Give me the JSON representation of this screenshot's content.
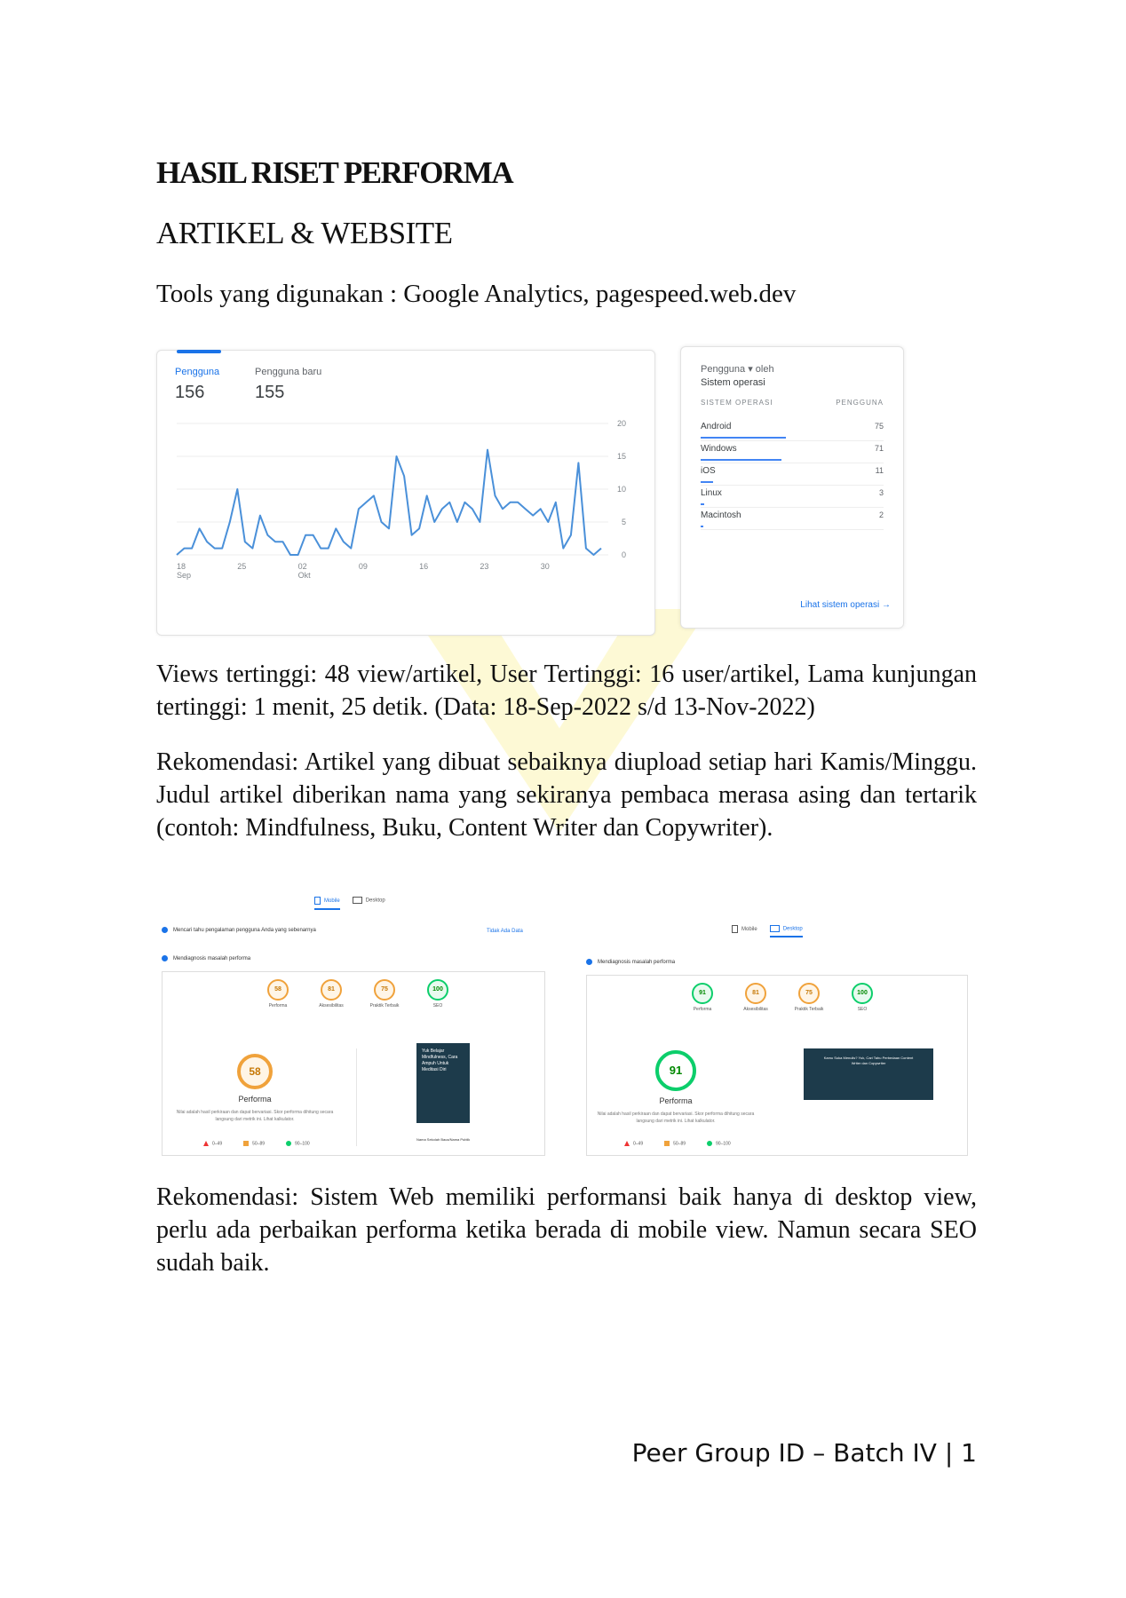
{
  "document": {
    "title": "HASIL RISET PERFORMA",
    "subtitle": "ARTIKEL & WEBSITE",
    "tools_line": "Tools yang digunakan : Google Analytics, pagespeed.web.dev",
    "paragraph1": "Views tertinggi: 48 view/artikel, User Tertinggi: 16 user/artikel, Lama kunjungan tertinggi: 1 menit,  25 detik. (Data: 18-Sep-2022 s/d 13-Nov-2022)",
    "paragraph2": "Rekomendasi: Artikel yang dibuat sebaiknya diupload setiap hari Kamis/Minggu. Judul artikel diberikan nama yang sekiranya pembaca merasa asing dan tertarik (contoh: Mindfulness, Buku, Content Writer dan Copywriter).",
    "paragraph3": "Rekomendasi: Sistem Web memiliki performansi baik hanya di desktop view, perlu ada perbaikan performa ketika berada di mobile view. Namun secara SEO sudah baik.",
    "footer": "Peer Group ID – Batch IV | 1"
  },
  "analytics": {
    "metric1_label": "Pengguna",
    "metric1_value": "156",
    "metric2_label": "Pengguna baru",
    "metric2_value": "155",
    "accent": "#1a73e8"
  },
  "chart_data": {
    "type": "line",
    "x": [
      0,
      1,
      2,
      3,
      4,
      5,
      6,
      7,
      8,
      9,
      10,
      11,
      12,
      13,
      14,
      15,
      16,
      17,
      18,
      19,
      20,
      21,
      22,
      23,
      24,
      25,
      26,
      27,
      28,
      29,
      30,
      31,
      32,
      33,
      34,
      35,
      36,
      37,
      38,
      39,
      40,
      41,
      42,
      43,
      44,
      45,
      46,
      47,
      48,
      49,
      50,
      51,
      52,
      53,
      54,
      55,
      56
    ],
    "values": [
      0,
      1,
      1,
      4,
      2,
      1,
      1,
      5,
      10,
      2,
      1,
      6,
      3,
      2,
      2,
      0,
      0,
      3,
      3,
      1,
      1,
      4,
      2,
      1,
      7,
      8,
      9,
      5,
      4,
      15,
      12,
      3,
      4,
      9,
      5,
      7,
      8,
      5,
      8,
      7,
      5,
      16,
      9,
      7,
      8,
      8,
      7,
      6,
      7,
      5,
      8,
      1,
      3,
      14,
      1,
      0,
      1
    ],
    "x_tick_labels": [
      "18\nSep",
      "25",
      "02\nOkt",
      "09",
      "16",
      "23",
      "30"
    ],
    "x_tick_positions": [
      0,
      8,
      16,
      24,
      32,
      40,
      48
    ],
    "y_ticks": [
      0,
      5,
      10,
      15,
      20
    ],
    "ylim": [
      0,
      20
    ],
    "color": "#4a90d9",
    "grid": true
  },
  "os_table": {
    "title": "Pengguna ▾ oleh",
    "subtitle": "Sistem operasi",
    "col1": "SISTEM OPERASI",
    "col2": "PENGGUNA",
    "rows": [
      {
        "name": "Android",
        "value": "75"
      },
      {
        "name": "Windows",
        "value": "71"
      },
      {
        "name": "iOS",
        "value": "11"
      },
      {
        "name": "Linux",
        "value": "3"
      },
      {
        "name": "Macintosh",
        "value": "2"
      }
    ],
    "link": "Lihat sistem operasi →"
  },
  "pagespeed_mobile": {
    "tab_mobile": "Mobile",
    "tab_desktop": "Desktop",
    "real_users_line": "Mencari tahu pengalaman pengguna Anda yang sebenarnya",
    "no_data": "Tidak Ada Data",
    "diagnose_line": "Mendiagnosis masalah performa",
    "scores": [
      {
        "value": "58",
        "label": "Performa",
        "color": "orange"
      },
      {
        "value": "81",
        "label": "Aksesibilitas",
        "color": "orange"
      },
      {
        "value": "75",
        "label": "Praktik Terbaik",
        "color": "orange"
      },
      {
        "value": "100",
        "label": "SEO",
        "color": "green"
      }
    ],
    "big_score": "58",
    "big_label": "Performa",
    "desc": "Nilai adalah hasil perkiraan dan dapat bervariasi. Skor performa dihitung secara langsung dari metrik ini. Lihat kalkulator.",
    "legend": [
      "0–49",
      "50–89",
      "90–100"
    ],
    "thumb_text": "Yuk Belajar Mindfulness, Cara Ampuh Untuk Meditasi Diri",
    "thumb_caption": "Nama Sekolah Baca/Nama Publik"
  },
  "pagespeed_desktop": {
    "tab_mobile": "Mobile",
    "tab_desktop": "Desktop",
    "diagnose_line": "Mendiagnosis masalah performa",
    "scores": [
      {
        "value": "91",
        "label": "Performa",
        "color": "green"
      },
      {
        "value": "81",
        "label": "Aksesibilitas",
        "color": "orange"
      },
      {
        "value": "75",
        "label": "Praktik Terbaik",
        "color": "orange"
      },
      {
        "value": "100",
        "label": "SEO",
        "color": "green"
      }
    ],
    "big_score": "91",
    "big_label": "Performa",
    "desc": "Nilai adalah hasil perkiraan dan dapat bervariasi. Skor performa dihitung secara langsung dari metrik ini. Lihat kalkulator.",
    "legend": [
      "0–49",
      "50–89",
      "90–100"
    ],
    "thumb_text": "Kamu Suka Menulis? Yuk, Cari Tahu Perbedaan Content Writer dan Copywriter"
  }
}
